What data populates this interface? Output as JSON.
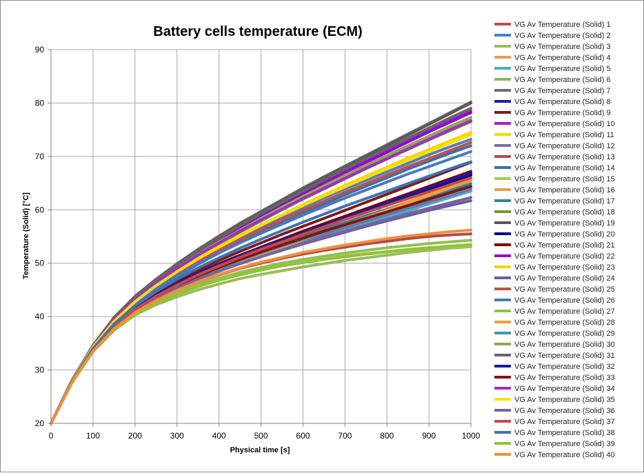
{
  "chart_data": {
    "type": "line",
    "title": "Battery cells temperature (ECM)",
    "xlabel": "Physical  time [s]",
    "ylabel": "Temperature (Solid) [°C]",
    "xlim": [
      0,
      1000
    ],
    "ylim": [
      20,
      90
    ],
    "xticks": [
      "0",
      "100",
      "200",
      "300",
      "400",
      "500",
      "600",
      "700",
      "800",
      "900",
      "1000"
    ],
    "yticks": [
      "20",
      "30",
      "40",
      "50",
      "60",
      "70",
      "80",
      "90"
    ],
    "grid": true,
    "legend_position": "right",
    "x": [
      0,
      50,
      100,
      150,
      200,
      250,
      300,
      350,
      400,
      450,
      500,
      550,
      600,
      650,
      700,
      750,
      800,
      850,
      900,
      950,
      1000
    ],
    "series": [
      {
        "name": "VG Av Temperature (Solid) 1",
        "color": "#c0504d",
        "values": [
          20.0,
          28.0,
          34.5,
          39.7,
          43.5,
          46.6,
          49.4,
          52.0,
          54.4,
          56.7,
          58.9,
          61.0,
          63.1,
          65.2,
          67.3,
          69.3,
          71.4,
          73.4,
          75.3,
          77.2,
          79.0
        ]
      },
      {
        "name": "VG Av Temperature (Solid) 2",
        "color": "#4f81bd",
        "values": [
          20.0,
          27.9,
          34.2,
          38.9,
          42.5,
          45.5,
          48.1,
          50.5,
          52.7,
          54.8,
          56.8,
          58.6,
          60.4,
          62.2,
          63.9,
          65.5,
          67.1,
          68.7,
          70.3,
          71.8,
          73.2
        ]
      },
      {
        "name": "VG Av Temperature (Solid) 3",
        "color": "#9bbb59",
        "values": [
          20.0,
          27.7,
          33.5,
          37.5,
          40.3,
          42.2,
          43.7,
          45.0,
          46.1,
          47.1,
          47.9,
          48.6,
          49.3,
          49.9,
          50.5,
          51.0,
          51.5,
          52.0,
          52.4,
          52.8,
          53.1
        ]
      },
      {
        "name": "VG Av Temperature (Solid) 4",
        "color": "#f79646",
        "values": [
          20.0,
          27.7,
          33.6,
          37.8,
          40.9,
          43.3,
          45.3,
          47.0,
          48.6,
          50.1,
          51.5,
          52.9,
          54.3,
          55.6,
          57.0,
          58.4,
          59.8,
          61.2,
          62.7,
          64.2,
          65.8
        ]
      },
      {
        "name": "VG Av Temperature (Solid) 5",
        "color": "#4bacc6",
        "values": [
          20.0,
          27.8,
          33.8,
          38.0,
          41.0,
          43.4,
          45.3,
          47.0,
          48.5,
          50.0,
          51.3,
          52.6,
          53.8,
          55.0,
          56.2,
          57.4,
          58.6,
          59.8,
          61.1,
          62.3,
          63.5
        ]
      },
      {
        "name": "VG Av Temperature (Solid) 6",
        "color": "#8db361",
        "values": [
          20.0,
          28.0,
          34.3,
          39.3,
          43.1,
          46.2,
          48.9,
          51.4,
          53.7,
          55.9,
          58.0,
          60.1,
          62.1,
          64.1,
          66.0,
          68.0,
          69.9,
          71.8,
          73.6,
          75.5,
          77.2
        ]
      },
      {
        "name": "VG Av Temperature (Solid) 7",
        "color": "#6e6e6e",
        "values": [
          20.0,
          28.1,
          34.6,
          39.8,
          43.8,
          47.0,
          49.9,
          52.6,
          55.1,
          57.5,
          59.7,
          61.9,
          64.1,
          66.2,
          68.2,
          70.2,
          72.2,
          74.2,
          76.2,
          78.2,
          80.2
        ]
      },
      {
        "name": "VG Av Temperature (Solid) 8",
        "color": "#1f1f9e",
        "values": [
          20.0,
          27.8,
          33.9,
          38.3,
          41.6,
          44.1,
          46.2,
          48.0,
          49.7,
          51.3,
          52.8,
          54.2,
          55.6,
          57.0,
          58.4,
          59.8,
          61.2,
          62.6,
          64.0,
          65.4,
          66.8
        ]
      },
      {
        "name": "VG Av Temperature (Solid) 9",
        "color": "#7a1c1c",
        "values": [
          20.0,
          27.9,
          34.0,
          38.5,
          41.9,
          44.5,
          46.7,
          48.7,
          50.5,
          52.2,
          53.8,
          55.4,
          56.9,
          58.4,
          59.9,
          61.4,
          62.9,
          64.4,
          65.9,
          67.4,
          68.9
        ]
      },
      {
        "name": "VG Av Temperature (Solid) 10",
        "color": "#a020c8",
        "values": [
          20.0,
          28.1,
          34.5,
          39.6,
          43.5,
          46.6,
          49.4,
          52.0,
          54.4,
          56.7,
          58.9,
          61.0,
          63.1,
          65.1,
          67.1,
          69.1,
          71.0,
          72.9,
          74.8,
          76.7,
          78.5
        ]
      },
      {
        "name": "VG Av Temperature (Solid) 11",
        "color": "#ffd700",
        "values": [
          20.0,
          28.0,
          34.4,
          39.4,
          43.2,
          46.3,
          49.0,
          51.5,
          53.8,
          56.0,
          58.1,
          60.1,
          62.1,
          64.0,
          65.9,
          67.8,
          69.6,
          71.4,
          73.2,
          75.0,
          76.8
        ]
      },
      {
        "name": "VG Av Temperature (Solid) 12",
        "color": "#7a6aa8",
        "values": [
          20.0,
          27.8,
          33.8,
          38.0,
          41.1,
          43.5,
          45.5,
          47.2,
          48.8,
          50.3,
          51.7,
          53.0,
          54.3,
          55.5,
          56.7,
          57.9,
          59.1,
          60.3,
          61.5,
          62.7,
          63.9
        ]
      },
      {
        "name": "VG Av Temperature (Solid) 13",
        "color": "#b54a48",
        "values": [
          20.0,
          27.7,
          33.6,
          37.7,
          40.7,
          43.0,
          44.9,
          46.5,
          47.8,
          49.0,
          50.0,
          50.9,
          51.7,
          52.4,
          53.0,
          53.6,
          54.1,
          54.6,
          55.0,
          55.3,
          55.5
        ]
      },
      {
        "name": "VG Av Temperature (Solid) 14",
        "color": "#3d6fa6",
        "values": [
          20.0,
          27.9,
          34.1,
          38.7,
          42.2,
          45.0,
          47.5,
          49.8,
          51.9,
          53.9,
          55.8,
          57.6,
          59.4,
          61.1,
          62.8,
          64.4,
          66.0,
          67.6,
          69.1,
          70.6,
          72.0
        ]
      },
      {
        "name": "VG Av Temperature (Solid) 15",
        "color": "#a6cc4a",
        "values": [
          20.0,
          27.6,
          33.4,
          37.4,
          40.3,
          42.5,
          44.3,
          45.8,
          47.0,
          48.0,
          48.9,
          49.7,
          50.3,
          50.9,
          51.4,
          51.8,
          52.2,
          52.6,
          52.9,
          53.1,
          53.3
        ]
      },
      {
        "name": "VG Av Temperature (Solid) 16",
        "color": "#e8a050",
        "values": [
          20.0,
          27.7,
          33.7,
          37.9,
          41.0,
          43.4,
          45.4,
          47.2,
          48.8,
          50.3,
          51.7,
          53.1,
          54.5,
          55.9,
          57.3,
          58.7,
          60.1,
          61.5,
          62.9,
          64.3,
          65.7
        ]
      },
      {
        "name": "VG Av Temperature (Solid) 17",
        "color": "#31859c",
        "values": [
          20.0,
          27.8,
          33.9,
          38.2,
          41.4,
          43.9,
          46.0,
          47.8,
          49.5,
          51.0,
          52.4,
          53.8,
          55.1,
          56.4,
          57.6,
          58.9,
          60.1,
          61.3,
          62.5,
          63.7,
          64.9
        ]
      },
      {
        "name": "VG Av Temperature (Solid) 18",
        "color": "#77933c",
        "values": [
          20.0,
          28.0,
          34.3,
          39.2,
          43.0,
          46.1,
          48.8,
          51.3,
          53.6,
          55.8,
          57.9,
          60.0,
          62.0,
          63.9,
          65.8,
          67.7,
          69.5,
          71.3,
          73.1,
          74.8,
          76.5
        ]
      },
      {
        "name": "VG Av Temperature (Solid) 19",
        "color": "#595959",
        "values": [
          20.0,
          28.1,
          34.6,
          39.8,
          43.7,
          46.9,
          49.8,
          52.4,
          54.9,
          57.3,
          59.5,
          61.7,
          63.9,
          66.0,
          68.0,
          70.0,
          72.0,
          74.0,
          76.0,
          78.0,
          80.0
        ]
      },
      {
        "name": "VG Av Temperature (Solid) 20",
        "color": "#00008b",
        "values": [
          20.0,
          27.8,
          33.9,
          38.3,
          41.5,
          44.0,
          46.1,
          48.0,
          49.7,
          51.3,
          52.8,
          54.2,
          55.6,
          57.0,
          58.4,
          59.7,
          61.1,
          62.5,
          63.8,
          65.2,
          66.5
        ]
      },
      {
        "name": "VG Av Temperature (Solid) 21",
        "color": "#800000",
        "values": [
          20.0,
          27.8,
          33.9,
          38.3,
          41.6,
          44.1,
          46.3,
          48.2,
          49.9,
          51.5,
          53.0,
          54.5,
          56.0,
          57.4,
          58.8,
          60.2,
          61.6,
          63.0,
          64.4,
          65.8,
          67.2
        ]
      },
      {
        "name": "VG Av Temperature (Solid) 22",
        "color": "#9400d3",
        "values": [
          20.0,
          28.1,
          34.5,
          39.5,
          43.4,
          46.5,
          49.3,
          51.9,
          54.3,
          56.6,
          58.8,
          60.9,
          63.0,
          65.0,
          67.0,
          68.9,
          70.8,
          72.7,
          74.6,
          76.4,
          78.2
        ]
      },
      {
        "name": "VG Av Temperature (Solid) 23",
        "color": "#f2d40f",
        "values": [
          20.0,
          28.0,
          34.3,
          39.2,
          42.9,
          45.9,
          48.5,
          50.9,
          53.1,
          55.2,
          57.2,
          59.1,
          61.0,
          62.8,
          64.6,
          66.3,
          68.0,
          69.7,
          71.3,
          72.9,
          74.5
        ]
      },
      {
        "name": "VG Av Temperature (Solid) 24",
        "color": "#6c5a9e",
        "values": [
          20.0,
          27.8,
          33.8,
          38.0,
          41.0,
          43.4,
          45.3,
          47.0,
          48.5,
          49.9,
          51.2,
          52.4,
          53.6,
          54.7,
          55.8,
          56.9,
          57.9,
          58.9,
          59.9,
          60.8,
          61.7
        ]
      },
      {
        "name": "VG Av Temperature (Solid) 25",
        "color": "#c05050",
        "values": [
          20.0,
          27.9,
          34.2,
          39.0,
          42.6,
          45.5,
          48.0,
          50.3,
          52.4,
          54.4,
          56.3,
          58.1,
          59.9,
          61.6,
          63.3,
          64.9,
          66.5,
          68.1,
          69.6,
          71.1,
          72.6
        ]
      },
      {
        "name": "VG Av Temperature (Solid) 26",
        "color": "#4a7ab8",
        "values": [
          20.0,
          27.9,
          34.1,
          38.8,
          42.4,
          45.2,
          47.7,
          49.9,
          51.9,
          53.8,
          55.6,
          57.3,
          59.0,
          60.6,
          62.2,
          63.7,
          65.2,
          66.7,
          68.1,
          69.5,
          70.9
        ]
      },
      {
        "name": "VG Av Temperature (Solid) 27",
        "color": "#92c050",
        "values": [
          20.0,
          27.7,
          33.5,
          37.6,
          40.5,
          42.7,
          44.5,
          46.0,
          47.2,
          48.3,
          49.2,
          50.0,
          50.7,
          51.3,
          51.9,
          52.4,
          52.9,
          53.3,
          53.7,
          54.0,
          54.3
        ]
      },
      {
        "name": "VG Av Temperature (Solid) 28",
        "color": "#f0a040",
        "values": [
          20.0,
          27.7,
          33.6,
          37.8,
          40.9,
          43.3,
          45.3,
          47.1,
          48.7,
          50.2,
          51.6,
          53.0,
          54.4,
          55.8,
          57.2,
          58.5,
          59.9,
          61.3,
          62.7,
          64.1,
          65.5
        ]
      },
      {
        "name": "VG Av Temperature (Solid) 29",
        "color": "#3f98b0",
        "values": [
          20.0,
          27.8,
          33.8,
          38.1,
          41.2,
          43.6,
          45.6,
          47.4,
          49.0,
          50.5,
          51.9,
          53.2,
          54.5,
          55.8,
          57.0,
          58.2,
          59.4,
          60.6,
          61.8,
          63.0,
          64.2
        ]
      },
      {
        "name": "VG Av Temperature (Solid) 30",
        "color": "#8aaa4e",
        "values": [
          20.0,
          28.0,
          34.4,
          39.4,
          43.2,
          46.3,
          49.1,
          51.6,
          54.0,
          56.2,
          58.4,
          60.5,
          62.5,
          64.5,
          66.4,
          68.3,
          70.2,
          72.0,
          73.8,
          75.6,
          77.3
        ]
      },
      {
        "name": "VG Av Temperature (Solid) 31",
        "color": "#666666",
        "values": [
          20.0,
          28.1,
          34.6,
          39.7,
          43.6,
          46.8,
          49.6,
          52.2,
          54.7,
          57.0,
          59.3,
          61.4,
          63.5,
          65.6,
          67.6,
          69.6,
          71.5,
          73.4,
          75.3,
          77.2,
          79.0
        ]
      },
      {
        "name": "VG Av Temperature (Solid) 32",
        "color": "#1a1aa0",
        "values": [
          20.0,
          27.8,
          33.9,
          38.3,
          41.5,
          44.0,
          46.2,
          48.1,
          49.8,
          51.4,
          52.9,
          54.3,
          55.7,
          57.1,
          58.5,
          59.9,
          61.3,
          62.7,
          64.1,
          65.5,
          66.9
        ]
      },
      {
        "name": "VG Av Temperature (Solid) 33",
        "color": "#8b1010",
        "values": [
          20.0,
          27.8,
          33.8,
          38.1,
          41.3,
          43.7,
          45.8,
          47.6,
          49.2,
          50.7,
          52.1,
          53.4,
          54.7,
          56.0,
          57.2,
          58.4,
          59.6,
          60.8,
          62.0,
          63.2,
          64.4
        ]
      },
      {
        "name": "VG Av Temperature (Solid) 34",
        "color": "#a32cc4",
        "values": [
          20.0,
          28.0,
          34.4,
          39.4,
          43.2,
          46.3,
          49.0,
          51.5,
          53.8,
          56.0,
          58.1,
          60.1,
          62.1,
          64.0,
          65.9,
          67.8,
          69.6,
          71.4,
          73.2,
          75.0,
          76.7
        ]
      },
      {
        "name": "VG Av Temperature (Solid) 35",
        "color": "#ffe000",
        "values": [
          20.0,
          28.0,
          34.3,
          39.1,
          42.8,
          45.8,
          48.4,
          50.8,
          53.0,
          55.1,
          57.1,
          59.0,
          60.8,
          62.6,
          64.3,
          66.0,
          67.7,
          69.3,
          70.9,
          72.5,
          74.1
        ]
      },
      {
        "name": "VG Av Temperature (Solid) 36",
        "color": "#75649c",
        "values": [
          20.0,
          27.7,
          33.7,
          37.9,
          41.0,
          43.3,
          45.3,
          47.0,
          48.5,
          49.9,
          51.2,
          52.5,
          53.7,
          54.9,
          56.0,
          57.1,
          58.2,
          59.3,
          60.3,
          61.3,
          62.3
        ]
      },
      {
        "name": "VG Av Temperature (Solid) 37",
        "color": "#c94844",
        "values": [
          20.0,
          27.8,
          33.8,
          38.1,
          41.3,
          43.8,
          45.9,
          47.8,
          49.5,
          51.1,
          52.6,
          54.0,
          55.4,
          56.8,
          58.2,
          59.5,
          60.8,
          62.1,
          63.4,
          64.7,
          66.0
        ]
      },
      {
        "name": "VG Av Temperature (Solid) 38",
        "color": "#3e74b0",
        "values": [
          20.0,
          27.9,
          34.0,
          38.6,
          42.0,
          44.7,
          47.0,
          49.1,
          51.0,
          52.8,
          54.5,
          56.1,
          57.7,
          59.2,
          60.7,
          62.1,
          63.5,
          64.9,
          66.3,
          67.7,
          69.0
        ]
      },
      {
        "name": "VG Av Temperature (Solid) 39",
        "color": "#8fc33c",
        "values": [
          20.0,
          27.7,
          33.5,
          37.5,
          40.4,
          42.5,
          44.2,
          45.6,
          46.8,
          47.8,
          48.7,
          49.5,
          50.1,
          50.7,
          51.2,
          51.7,
          52.1,
          52.5,
          52.9,
          53.2,
          53.5
        ]
      },
      {
        "name": "VG Av Temperature (Solid) 40",
        "color": "#ee9040",
        "values": [
          20.0,
          27.7,
          33.5,
          37.7,
          40.7,
          43.0,
          44.9,
          46.5,
          47.9,
          49.1,
          50.2,
          51.1,
          52.0,
          52.7,
          53.4,
          54.0,
          54.6,
          55.1,
          55.5,
          55.9,
          56.2
        ]
      }
    ]
  }
}
